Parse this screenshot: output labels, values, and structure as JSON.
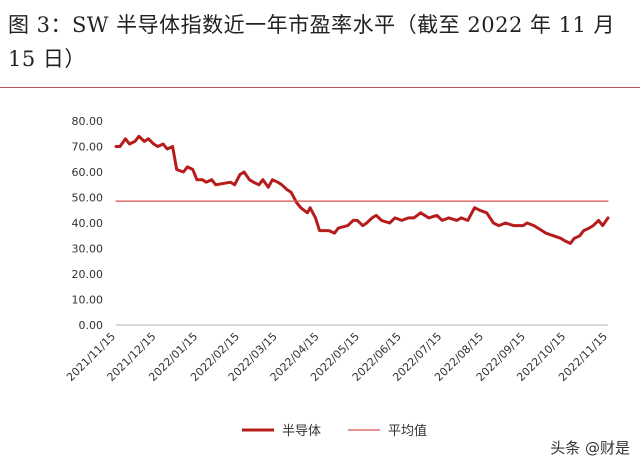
{
  "title": "图 3：SW 半导体指数近一年市盈率水平（截至 2022 年 11 月 15 日）",
  "watermark": "头条 @财是",
  "chart_data": {
    "type": "line",
    "title": "图 3：SW 半导体指数近一年市盈率水平（截至 2022 年 11 月 15 日）",
    "xlabel": "",
    "ylabel": "",
    "ylim": [
      0,
      80
    ],
    "yticks": [
      "0.00",
      "10.00",
      "20.00",
      "30.00",
      "40.00",
      "50.00",
      "60.00",
      "70.00",
      "80.00"
    ],
    "xticks": [
      "2021/11/15",
      "2021/12/15",
      "2022/01/15",
      "2022/02/15",
      "2022/03/15",
      "2022/04/15",
      "2022/05/15",
      "2022/06/15",
      "2022/07/15",
      "2022/08/15",
      "2022/09/15",
      "2022/10/15",
      "2022/11/15"
    ],
    "grid": false,
    "legend": "bottom-center",
    "series": [
      {
        "name": "半导体",
        "color": "#b71c1c",
        "x": [
          "2021/11/15",
          "2021/11/18",
          "2021/11/22",
          "2021/11/25",
          "2021/11/29",
          "2021/12/02",
          "2021/12/06",
          "2021/12/09",
          "2021/12/13",
          "2021/12/16",
          "2021/12/20",
          "2021/12/23",
          "2021/12/27",
          "2021/12/30",
          "2022/01/04",
          "2022/01/07",
          "2022/01/11",
          "2022/01/14",
          "2022/01/18",
          "2022/01/21",
          "2022/01/25",
          "2022/01/28",
          "2022/02/08",
          "2022/02/11",
          "2022/02/15",
          "2022/02/18",
          "2022/02/22",
          "2022/02/25",
          "2022/03/01",
          "2022/03/04",
          "2022/03/08",
          "2022/03/11",
          "2022/03/15",
          "2022/03/18",
          "2022/03/22",
          "2022/03/25",
          "2022/03/29",
          "2022/04/01",
          "2022/04/06",
          "2022/04/08",
          "2022/04/12",
          "2022/04/15",
          "2022/04/19",
          "2022/04/22",
          "2022/04/26",
          "2022/04/29",
          "2022/05/06",
          "2022/05/10",
          "2022/05/13",
          "2022/05/17",
          "2022/05/20",
          "2022/05/24",
          "2022/05/27",
          "2022/05/31",
          "2022/06/06",
          "2022/06/10",
          "2022/06/15",
          "2022/06/20",
          "2022/06/24",
          "2022/06/29",
          "2022/07/05",
          "2022/07/11",
          "2022/07/15",
          "2022/07/20",
          "2022/07/26",
          "2022/07/29",
          "2022/08/03",
          "2022/08/08",
          "2022/08/12",
          "2022/08/17",
          "2022/08/22",
          "2022/08/26",
          "2022/08/31",
          "2022/09/06",
          "2022/09/13",
          "2022/09/16",
          "2022/09/21",
          "2022/09/27",
          "2022/09/30",
          "2022/10/11",
          "2022/10/14",
          "2022/10/18",
          "2022/10/21",
          "2022/10/25",
          "2022/10/28",
          "2022/11/01",
          "2022/11/04",
          "2022/11/08",
          "2022/11/11",
          "2022/11/15"
        ],
        "values": [
          70,
          70,
          73,
          71,
          72,
          74,
          72,
          73,
          71,
          70,
          71,
          69,
          70,
          61,
          60,
          62,
          61,
          57,
          57,
          56,
          57,
          55,
          56,
          55,
          59,
          60,
          57,
          56,
          55,
          57,
          54,
          57,
          56,
          55,
          53,
          52,
          48,
          46,
          44,
          46,
          42,
          37,
          37,
          37,
          36,
          38,
          39,
          41,
          41,
          39,
          40,
          42,
          43,
          41,
          40,
          42,
          41,
          42,
          42,
          44,
          42,
          43,
          41,
          42,
          41,
          42,
          41,
          46,
          45,
          44,
          40,
          39,
          40,
          39,
          39,
          40,
          39,
          37,
          36,
          34,
          33,
          32,
          34,
          35,
          37,
          38,
          39,
          41,
          39,
          42
        ]
      },
      {
        "name": "平均值",
        "color": "#d9534f",
        "x": [
          "2021/11/15",
          "2022/11/15"
        ],
        "values": [
          48.6,
          48.6
        ]
      }
    ]
  }
}
